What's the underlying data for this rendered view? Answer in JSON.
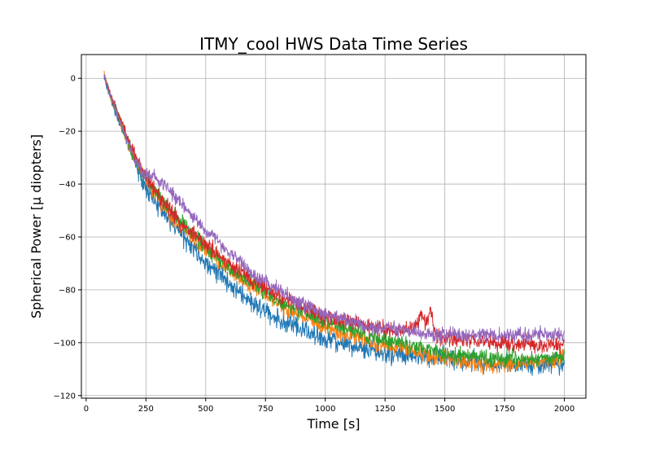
{
  "chart_data": {
    "type": "line",
    "title": "ITMY_cool HWS Data Time Series",
    "xlabel": "Time [s]",
    "ylabel": "Spherical Power [μ diopters]",
    "xlim": [
      -20,
      2090
    ],
    "ylim": [
      -121,
      9
    ],
    "xticks": [
      0,
      250,
      500,
      750,
      1000,
      1250,
      1500,
      1750,
      2000
    ],
    "yticks": [
      0,
      -20,
      -40,
      -60,
      -80,
      -100,
      -120
    ],
    "xtick_labels": [
      "0",
      "250",
      "500",
      "750",
      "1000",
      "1250",
      "1500",
      "1750",
      "2000"
    ],
    "ytick_labels": [
      "0",
      "−20",
      "−40",
      "−60",
      "−80",
      "−100",
      "−120"
    ],
    "grid": true,
    "legend": "none",
    "series": [
      {
        "color": "#1f77b4",
        "noise": 2.5,
        "x": [
          75,
          100,
          150,
          200,
          250,
          300,
          350,
          400,
          450,
          500,
          550,
          600,
          650,
          700,
          750,
          800,
          900,
          1000,
          1100,
          1200,
          1300,
          1400,
          1500,
          1600,
          1700,
          1800,
          1900,
          2000
        ],
        "y": [
          0,
          -7,
          -19,
          -31,
          -41,
          -48,
          -54,
          -59,
          -64,
          -70,
          -73,
          -78,
          -82,
          -85,
          -88,
          -91,
          -95,
          -99,
          -101,
          -103,
          -104,
          -105,
          -106,
          -107,
          -108,
          -108,
          -108,
          -108
        ]
      },
      {
        "color": "#ff7f0e",
        "noise": 2.0,
        "x": [
          75,
          100,
          150,
          200,
          250,
          300,
          350,
          400,
          450,
          500,
          550,
          600,
          650,
          700,
          750,
          800,
          900,
          1000,
          1100,
          1200,
          1300,
          1400,
          1500,
          1600,
          1700,
          1800,
          1900,
          2000
        ],
        "y": [
          2,
          -6,
          -18,
          -30,
          -39,
          -46,
          -52,
          -57,
          -61,
          -65,
          -69,
          -72,
          -76,
          -79,
          -82,
          -85,
          -90,
          -94,
          -97,
          -100,
          -102,
          -104,
          -106,
          -108,
          -108,
          -108,
          -107,
          -106
        ]
      },
      {
        "color": "#2ca02c",
        "noise": 2.0,
        "x": [
          75,
          100,
          150,
          200,
          250,
          300,
          350,
          400,
          450,
          500,
          550,
          600,
          650,
          700,
          750,
          800,
          900,
          1000,
          1100,
          1200,
          1300,
          1400,
          1500,
          1600,
          1700,
          1800,
          1900,
          2000
        ],
        "y": [
          1,
          -6,
          -18,
          -30,
          -38,
          -44,
          -50,
          -55,
          -59,
          -64,
          -68,
          -72,
          -75,
          -78,
          -81,
          -84,
          -88,
          -92,
          -95,
          -98,
          -100,
          -102,
          -104,
          -105,
          -106,
          -106,
          -106,
          -105
        ]
      },
      {
        "color": "#d62728",
        "noise": 2.0,
        "x": [
          75,
          100,
          150,
          200,
          250,
          300,
          350,
          400,
          450,
          500,
          550,
          600,
          650,
          700,
          750,
          800,
          900,
          1000,
          1100,
          1200,
          1300,
          1380,
          1400,
          1420,
          1440,
          1460,
          1500,
          1600,
          1700,
          1800,
          1900,
          2000
        ],
        "y": [
          1,
          -6,
          -17,
          -28,
          -37,
          -44,
          -50,
          -55,
          -59,
          -63,
          -66,
          -70,
          -73,
          -77,
          -79,
          -82,
          -86,
          -90,
          -92,
          -94,
          -96,
          -94,
          -89,
          -93,
          -88,
          -97,
          -98,
          -99,
          -100,
          -100,
          -101,
          -101
        ]
      },
      {
        "color": "#9467bd",
        "noise": 1.8,
        "x": [
          75,
          100,
          150,
          200,
          250,
          300,
          350,
          400,
          450,
          500,
          550,
          600,
          650,
          700,
          750,
          800,
          900,
          1000,
          1100,
          1200,
          1300,
          1400,
          1500,
          1600,
          1700,
          1800,
          1900,
          2000
        ],
        "y": [
          1,
          -6,
          -18,
          -30,
          -37,
          -38,
          -42,
          -48,
          -52,
          -58,
          -62,
          -66,
          -70,
          -74,
          -77,
          -80,
          -85,
          -89,
          -92,
          -94,
          -95,
          -96,
          -97,
          -97,
          -97,
          -97,
          -97,
          -97
        ]
      }
    ]
  }
}
